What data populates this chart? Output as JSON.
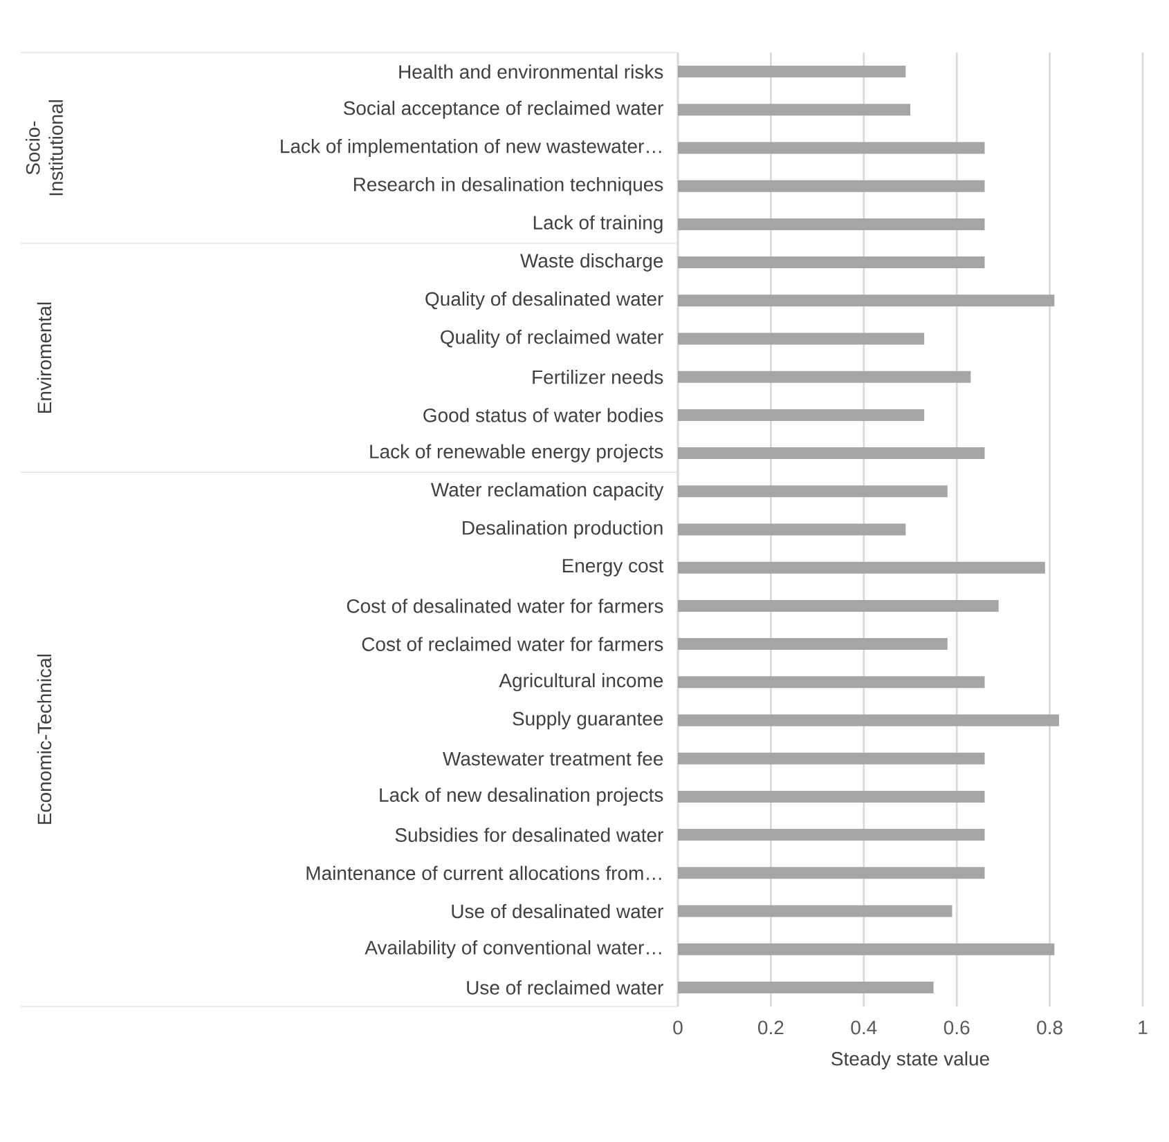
{
  "chart_data": {
    "type": "bar",
    "orientation": "horizontal",
    "xlabel": "Steady state value",
    "categories": [
      "Health and environmental risks",
      "Social acceptance of reclaimed water",
      "Lack of implementation of new wastewater…",
      "Research in desalination techniques",
      "Lack of training",
      "Waste discharge",
      "Quality of desalinated water",
      "Quality of reclaimed water",
      "Fertilizer needs",
      "Good status of water bodies",
      "Lack of renewable energy projects",
      "Water reclamation capacity",
      "Desalination production",
      "Energy cost",
      "Cost of desalinated water for farmers",
      "Cost of reclaimed water for farmers",
      "Agricultural income",
      "Supply guarantee",
      "Wastewater treatment fee",
      "Lack of new desalination projects",
      "Subsidies for desalinated water",
      "Maintenance of current allocations from…",
      "Use of desalinated water",
      "Availability of conventional water…",
      "Use of reclaimed water"
    ],
    "values": [
      0.49,
      0.5,
      0.66,
      0.66,
      0.66,
      0.66,
      0.81,
      0.53,
      0.63,
      0.53,
      0.66,
      0.58,
      0.49,
      0.79,
      0.69,
      0.58,
      0.66,
      0.82,
      0.66,
      0.66,
      0.66,
      0.66,
      0.59,
      0.81,
      0.55
    ],
    "color": "#a5a5a5",
    "xlim": [
      0,
      1
    ],
    "xticks": [
      0,
      0.2,
      0.4,
      0.6,
      0.8,
      1
    ],
    "grid": "x",
    "legend": false,
    "annotations": [
      "Socio-Institutional",
      "Enviromental",
      "Economic-Technical"
    ]
  }
}
